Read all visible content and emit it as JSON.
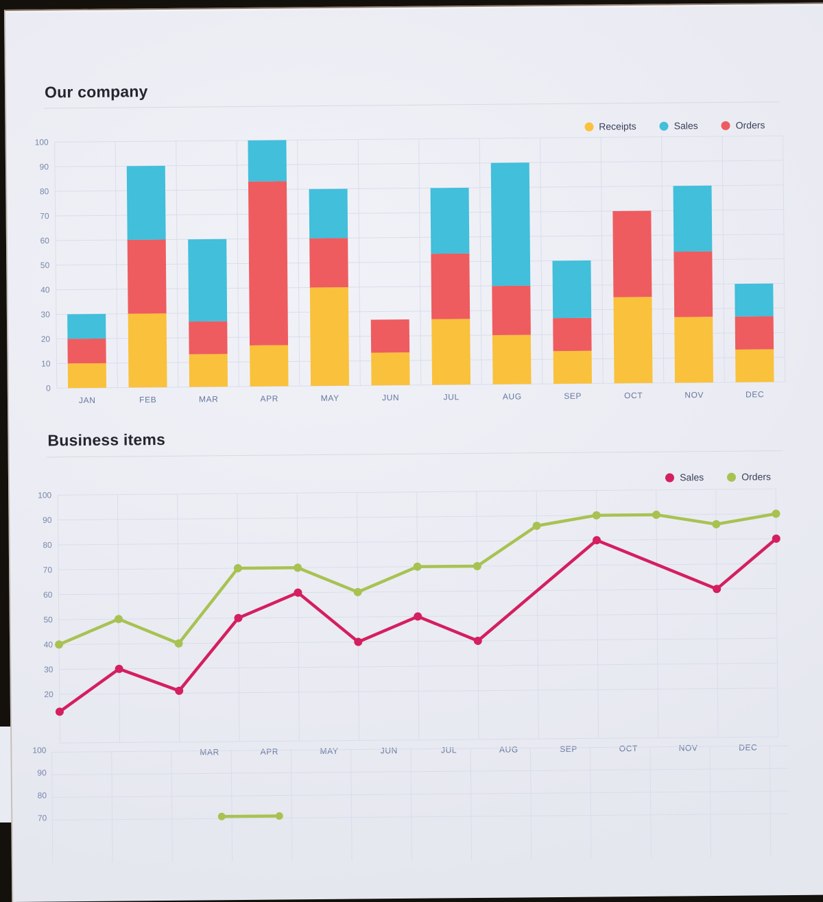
{
  "page": {
    "backdrop_color": "#14100c",
    "paper_color": "#edeef4",
    "grid_color": "#d9ddeb",
    "tick_text_color": "#7787ab",
    "month_text_color": "#66779f"
  },
  "chart_data": [
    {
      "type": "bar",
      "stacked": true,
      "title": "Our company",
      "categories": [
        "JAN",
        "FEB",
        "MAR",
        "APR",
        "MAY",
        "JUN",
        "JUL",
        "AUG",
        "SEP",
        "OCT",
        "NOV",
        "DEC"
      ],
      "series": [
        {
          "name": "Receipts",
          "color": "#fac13c",
          "values": [
            10,
            30,
            13.3,
            16.7,
            40,
            13.3,
            26.7,
            20,
            13.3,
            35,
            26.7,
            13.3
          ]
        },
        {
          "name": "Orders",
          "color": "#ee5c5f",
          "values": [
            10,
            30,
            13.3,
            66.6,
            20,
            13.4,
            26.6,
            20,
            13.4,
            35,
            26.6,
            13.4
          ]
        },
        {
          "name": "Sales",
          "color": "#41bfdb",
          "values": [
            10,
            30,
            33.4,
            16.7,
            20,
            0,
            26.7,
            50,
            23.3,
            0,
            26.7,
            13.3
          ]
        }
      ],
      "stack_order_bottom_to_top": [
        "Receipts",
        "Orders",
        "Sales"
      ],
      "legend": [
        {
          "label": "Receipts",
          "color": "#fac13c"
        },
        {
          "label": "Sales",
          "color": "#41bfdb"
        },
        {
          "label": "Orders",
          "color": "#ee5c5f"
        }
      ],
      "ylim": [
        0,
        100
      ],
      "ytick_step": 10,
      "grid": true,
      "legend_position": "top-right"
    },
    {
      "type": "line",
      "title": "Business items",
      "x_points": 13,
      "x_labels_visible": [
        "MAR",
        "APR",
        "MAY",
        "JUN",
        "JUL",
        "AUG",
        "SEP",
        "OCT",
        "NOV",
        "DEC"
      ],
      "x_labels_hidden_by_overlap": [
        "JAN",
        "FEB"
      ],
      "series": [
        {
          "name": "Sales",
          "color": "#d41f60",
          "values": [
            13,
            30,
            21,
            50,
            60,
            40,
            50,
            40,
            null,
            80,
            null,
            60,
            80
          ]
        },
        {
          "name": "Orders",
          "color": "#a8c252",
          "values": [
            40,
            50,
            40,
            70,
            70,
            60,
            70,
            70,
            86,
            90,
            90,
            86,
            90
          ]
        }
      ],
      "legend": [
        {
          "label": "Sales",
          "color": "#d41f60"
        },
        {
          "label": "Orders",
          "color": "#a8c252"
        }
      ],
      "ylim": [
        0,
        100
      ],
      "yticks_visible": [
        100,
        90,
        80,
        70,
        60,
        50,
        40,
        30,
        20
      ],
      "grid": true,
      "legend_position": "top-right"
    },
    {
      "type": "line",
      "title": "",
      "clipped_at_page_bottom": true,
      "yticks_visible": [
        100,
        90,
        80,
        70
      ],
      "series": [
        {
          "name": "Orders",
          "color": "#a8c252",
          "values": [
            70,
            70
          ]
        }
      ],
      "ylim": [
        0,
        100
      ],
      "grid": true
    }
  ]
}
